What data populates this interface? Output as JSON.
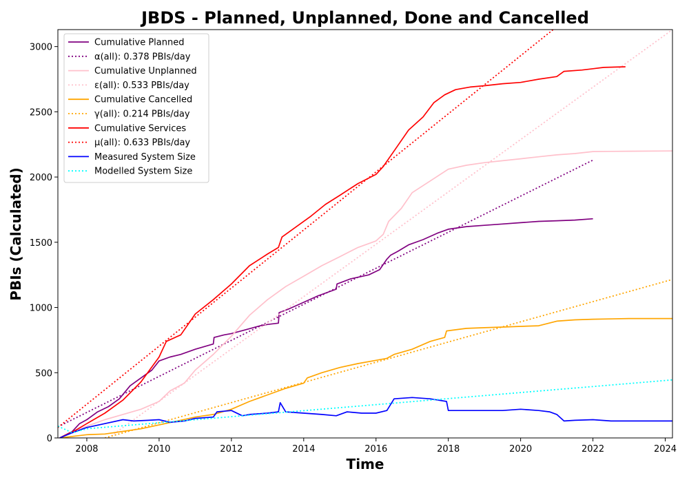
{
  "chart_data": {
    "type": "line",
    "title": "JBDS - Planned, Unplanned, Done  and Cancelled",
    "xlabel": "Time",
    "ylabel": "PBIs (Calculated)",
    "xlim": [
      2007.2,
      2024.2
    ],
    "ylim": [
      0,
      3130
    ],
    "xticks": [
      "2008",
      "2010",
      "2012",
      "2014",
      "2016",
      "2018",
      "2020",
      "2022",
      "2024"
    ],
    "yticks": [
      "0",
      "500",
      "1000",
      "1500",
      "2000",
      "2500",
      "3000"
    ],
    "legend_position": "top-left",
    "series": [
      {
        "name": "Cumulative Planned",
        "color": "#800080",
        "style": "solid",
        "x": [
          2007.25,
          2007.6,
          2007.8,
          2008.0,
          2008.3,
          2008.6,
          2008.9,
          2009.2,
          2009.5,
          2009.8,
          2010.0,
          2010.3,
          2010.6,
          2011.0,
          2011.5,
          2011.52,
          2011.8,
          2012.0,
          2012.4,
          2012.8,
          2013.0,
          2013.3,
          2013.32,
          2013.6,
          2014.0,
          2014.4,
          2014.9,
          2014.92,
          2015.3,
          2015.8,
          2016.1,
          2016.3,
          2016.4,
          2016.6,
          2016.9,
          2017.3,
          2017.7,
          2018.0,
          2018.5,
          2019.0,
          2019.5,
          2020.0,
          2020.5,
          2021.0,
          2021.5,
          2022.0
        ],
        "y": [
          0,
          50,
          110,
          140,
          200,
          240,
          300,
          400,
          460,
          520,
          590,
          620,
          640,
          680,
          720,
          770,
          790,
          800,
          830,
          860,
          870,
          880,
          960,
          990,
          1040,
          1090,
          1140,
          1180,
          1220,
          1250,
          1290,
          1370,
          1400,
          1430,
          1480,
          1520,
          1570,
          1600,
          1620,
          1630,
          1640,
          1650,
          1660,
          1665,
          1670,
          1680
        ]
      },
      {
        "name": "α(all): 0.378 PBIs/day",
        "color": "#800080",
        "style": "dotted",
        "x": [
          2007.2,
          2022.0
        ],
        "y": [
          85,
          2130
        ]
      },
      {
        "name": "Cumulative Unplanned",
        "color": "#ffc0cb",
        "style": "solid",
        "x": [
          2007.25,
          2008.0,
          2008.5,
          2009.0,
          2009.5,
          2010.0,
          2010.3,
          2010.7,
          2011.0,
          2011.5,
          2012.0,
          2012.5,
          2013.0,
          2013.5,
          2014.0,
          2014.5,
          2015.0,
          2015.5,
          2016.0,
          2016.2,
          2016.35,
          2016.7,
          2017.0,
          2017.5,
          2018.0,
          2018.5,
          2019.0,
          2019.5,
          2020.0,
          2020.5,
          2021.0,
          2021.5,
          2022.0,
          2023.0,
          2024.2
        ],
        "y": [
          0,
          90,
          140,
          180,
          220,
          280,
          360,
          420,
          520,
          640,
          780,
          940,
          1060,
          1160,
          1240,
          1320,
          1390,
          1460,
          1510,
          1560,
          1660,
          1760,
          1880,
          1970,
          2060,
          2090,
          2110,
          2125,
          2140,
          2155,
          2170,
          2180,
          2195,
          2198,
          2200
        ]
      },
      {
        "name": "ε(all): 0.533 PBIs/day",
        "color": "#ffc0cb",
        "style": "dotted",
        "x": [
          2008.6,
          2024.2
        ],
        "y": [
          0,
          3130
        ]
      },
      {
        "name": "Cumulative Cancelled",
        "color": "#ffa500",
        "style": "solid",
        "x": [
          2007.25,
          2007.7,
          2008.0,
          2008.5,
          2009.0,
          2009.5,
          2010.0,
          2010.5,
          2011.0,
          2011.5,
          2012.0,
          2012.5,
          2013.0,
          2013.5,
          2014.0,
          2014.1,
          2014.5,
          2015.0,
          2015.5,
          2016.0,
          2016.3,
          2016.5,
          2017.0,
          2017.5,
          2017.9,
          2017.95,
          2018.5,
          2019.0,
          2019.5,
          2020.0,
          2020.5,
          2021.0,
          2021.5,
          2022.0,
          2023.0,
          2024.2
        ],
        "y": [
          0,
          15,
          25,
          30,
          50,
          70,
          100,
          130,
          160,
          180,
          220,
          280,
          330,
          380,
          420,
          460,
          500,
          540,
          570,
          595,
          610,
          640,
          680,
          740,
          770,
          820,
          840,
          845,
          850,
          855,
          860,
          895,
          905,
          910,
          915,
          915
        ]
      },
      {
        "name": "γ(all): 0.214 PBIs/day",
        "color": "#ffa500",
        "style": "dotted",
        "x": [
          2008.5,
          2024.2
        ],
        "y": [
          0,
          1215
        ]
      },
      {
        "name": "Cumulative Services",
        "color": "#ff0000",
        "style": "solid",
        "x": [
          2007.25,
          2007.7,
          2008.0,
          2008.5,
          2009.0,
          2009.5,
          2010.0,
          2010.2,
          2010.6,
          2011.0,
          2011.5,
          2012.0,
          2012.5,
          2013.0,
          2013.3,
          2013.4,
          2013.8,
          2014.2,
          2014.6,
          2015.0,
          2015.5,
          2016.0,
          2016.2,
          2016.5,
          2016.9,
          2017.3,
          2017.6,
          2017.9,
          2018.2,
          2018.6,
          2019.0,
          2019.5,
          2020.0,
          2020.5,
          2021.0,
          2021.2,
          2021.7,
          2022.0,
          2022.3,
          2022.9
        ],
        "y": [
          0,
          60,
          110,
          190,
          290,
          430,
          620,
          740,
          790,
          950,
          1060,
          1180,
          1320,
          1410,
          1460,
          1540,
          1620,
          1700,
          1790,
          1860,
          1950,
          2020,
          2080,
          2200,
          2360,
          2460,
          2570,
          2630,
          2670,
          2690,
          2700,
          2715,
          2725,
          2750,
          2770,
          2810,
          2820,
          2830,
          2840,
          2845
        ]
      },
      {
        "name": "μ(all): 0.633 PBIs/day",
        "color": "#ff0000",
        "style": "dotted",
        "x": [
          2007.2,
          2020.9
        ],
        "y": [
          80,
          3130
        ]
      },
      {
        "name": "Measured System Size",
        "color": "#0000ff",
        "style": "solid",
        "x": [
          2007.25,
          2007.6,
          2008.0,
          2008.5,
          2009.0,
          2009.3,
          2009.7,
          2010.0,
          2010.3,
          2010.7,
          2011.0,
          2011.5,
          2011.6,
          2012.0,
          2012.3,
          2012.5,
          2013.0,
          2013.3,
          2013.35,
          2013.5,
          2014.0,
          2014.5,
          2014.9,
          2015.2,
          2015.6,
          2016.0,
          2016.3,
          2016.5,
          2017.0,
          2017.5,
          2017.95,
          2018.0,
          2018.5,
          2019.0,
          2019.5,
          2020.0,
          2020.5,
          2020.8,
          2021.0,
          2021.2,
          2021.5,
          2022.0,
          2022.5,
          2023.0,
          2024.2
        ],
        "y": [
          0,
          40,
          80,
          110,
          140,
          130,
          135,
          140,
          120,
          130,
          150,
          160,
          200,
          210,
          170,
          180,
          190,
          200,
          270,
          200,
          190,
          180,
          170,
          200,
          190,
          190,
          210,
          300,
          310,
          300,
          280,
          210,
          210,
          210,
          210,
          220,
          210,
          200,
          180,
          130,
          135,
          140,
          130,
          130,
          130
        ]
      },
      {
        "name": "Modelled System Size",
        "color": "#00ffff",
        "style": "dotted",
        "x": [
          2007.2,
          2007.6,
          2008.0,
          2024.2
        ],
        "y": [
          90,
          40,
          70,
          445
        ]
      }
    ]
  }
}
